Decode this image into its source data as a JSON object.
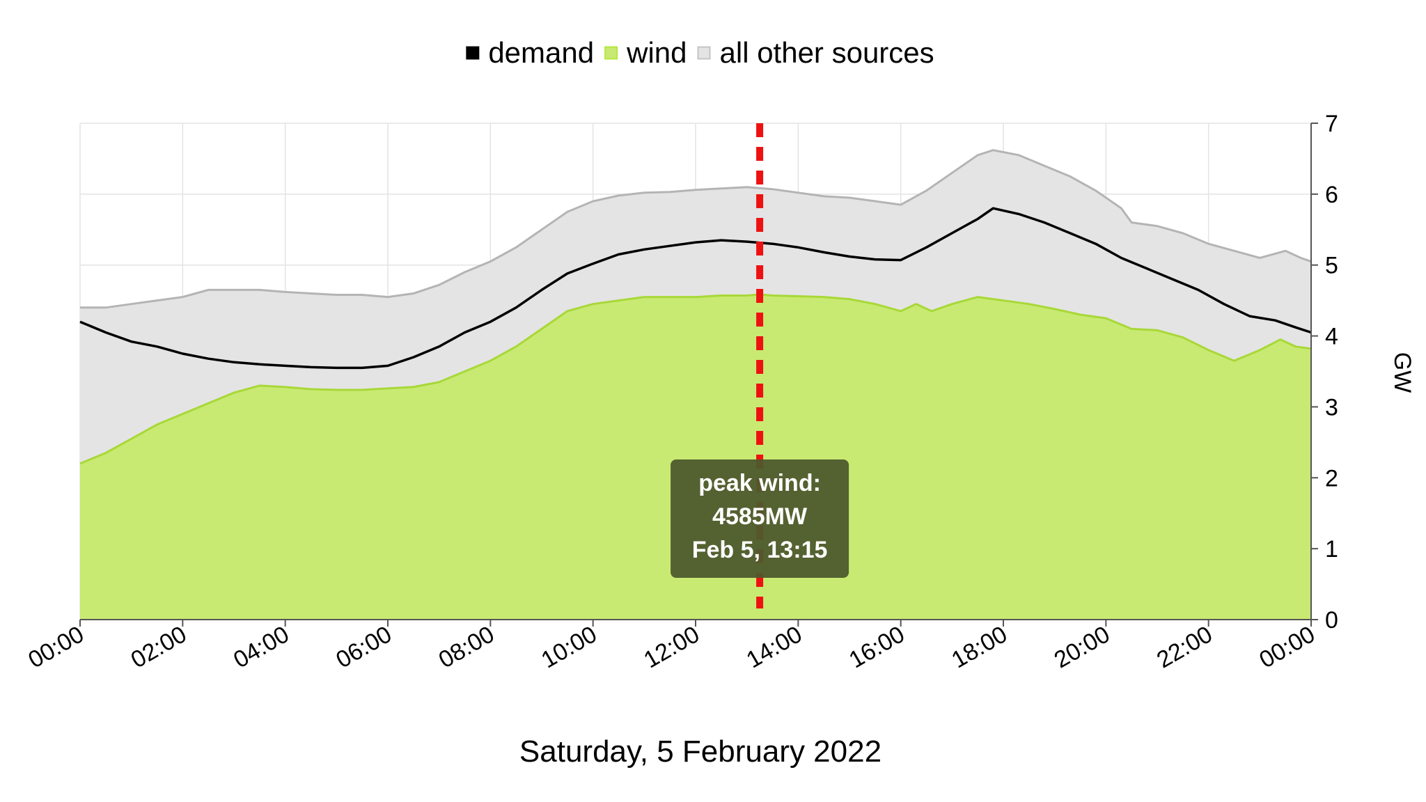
{
  "legend": {
    "items": [
      {
        "label": "demand",
        "color": "#000000"
      },
      {
        "label": "wind",
        "color": "#b5e83c"
      },
      {
        "label": "all other sources",
        "color": "#c4c4c4"
      }
    ]
  },
  "caption": "Saturday, 5 February 2022",
  "y_axis_label": "GW",
  "annotation": {
    "line1": "peak wind:",
    "line2": "4585MW",
    "line3": "Feb 5, 13:15",
    "marker_hour": 13.25
  },
  "colors": {
    "wind_fill": "#c8ea72",
    "wind_line": "#a8d838",
    "other_fill": "#e4e4e4",
    "other_line": "#b4b4b4",
    "demand_line": "#000000",
    "marker": "#ee1111",
    "callout_bg": "#4e5a2d",
    "grid": "#e3e3e3"
  },
  "chart_data": {
    "type": "area",
    "x_unit": "hour of day",
    "x_ticks": [
      "00:00",
      "02:00",
      "04:00",
      "06:00",
      "08:00",
      "10:00",
      "12:00",
      "14:00",
      "16:00",
      "18:00",
      "20:00",
      "22:00",
      "00:00"
    ],
    "y_ticks": [
      "0",
      "1",
      "2",
      "3",
      "4",
      "5",
      "6",
      "7"
    ],
    "xlim": [
      0,
      24
    ],
    "ylim": [
      0,
      7
    ],
    "grid": true,
    "legend_position": "top-center",
    "series": [
      {
        "name": "wind",
        "kind": "area",
        "points": [
          [
            0,
            2.2
          ],
          [
            0.5,
            2.35
          ],
          [
            1,
            2.55
          ],
          [
            1.5,
            2.75
          ],
          [
            2,
            2.9
          ],
          [
            2.5,
            3.05
          ],
          [
            3,
            3.2
          ],
          [
            3.5,
            3.3
          ],
          [
            4,
            3.28
          ],
          [
            4.5,
            3.25
          ],
          [
            5,
            3.24
          ],
          [
            5.5,
            3.24
          ],
          [
            6,
            3.26
          ],
          [
            6.5,
            3.28
          ],
          [
            7,
            3.35
          ],
          [
            7.5,
            3.5
          ],
          [
            8,
            3.65
          ],
          [
            8.5,
            3.85
          ],
          [
            9,
            4.1
          ],
          [
            9.5,
            4.35
          ],
          [
            10,
            4.45
          ],
          [
            10.5,
            4.5
          ],
          [
            11,
            4.55
          ],
          [
            11.5,
            4.55
          ],
          [
            12,
            4.55
          ],
          [
            12.5,
            4.57
          ],
          [
            13,
            4.57
          ],
          [
            13.25,
            4.585
          ],
          [
            13.5,
            4.57
          ],
          [
            14,
            4.56
          ],
          [
            14.5,
            4.55
          ],
          [
            15,
            4.52
          ],
          [
            15.5,
            4.45
          ],
          [
            16,
            4.35
          ],
          [
            16.3,
            4.45
          ],
          [
            16.6,
            4.35
          ],
          [
            17,
            4.45
          ],
          [
            17.5,
            4.55
          ],
          [
            18,
            4.5
          ],
          [
            18.5,
            4.45
          ],
          [
            19,
            4.38
          ],
          [
            19.5,
            4.3
          ],
          [
            20,
            4.25
          ],
          [
            20.5,
            4.1
          ],
          [
            21,
            4.08
          ],
          [
            21.5,
            3.98
          ],
          [
            22,
            3.8
          ],
          [
            22.5,
            3.65
          ],
          [
            23,
            3.8
          ],
          [
            23.4,
            3.95
          ],
          [
            23.7,
            3.85
          ],
          [
            24,
            3.82
          ]
        ]
      },
      {
        "name": "all other sources",
        "kind": "stacked-total",
        "points": [
          [
            0,
            4.4
          ],
          [
            0.5,
            4.4
          ],
          [
            1,
            4.45
          ],
          [
            1.5,
            4.5
          ],
          [
            2,
            4.55
          ],
          [
            2.5,
            4.65
          ],
          [
            3,
            4.65
          ],
          [
            3.5,
            4.65
          ],
          [
            4,
            4.62
          ],
          [
            4.5,
            4.6
          ],
          [
            5,
            4.58
          ],
          [
            5.5,
            4.58
          ],
          [
            6,
            4.55
          ],
          [
            6.5,
            4.6
          ],
          [
            7,
            4.72
          ],
          [
            7.5,
            4.9
          ],
          [
            8,
            5.05
          ],
          [
            8.5,
            5.25
          ],
          [
            9,
            5.5
          ],
          [
            9.5,
            5.75
          ],
          [
            10,
            5.9
          ],
          [
            10.5,
            5.98
          ],
          [
            11,
            6.02
          ],
          [
            11.5,
            6.03
          ],
          [
            12,
            6.06
          ],
          [
            12.5,
            6.08
          ],
          [
            13,
            6.1
          ],
          [
            13.5,
            6.07
          ],
          [
            14,
            6.02
          ],
          [
            14.5,
            5.97
          ],
          [
            15,
            5.95
          ],
          [
            15.5,
            5.9
          ],
          [
            16,
            5.85
          ],
          [
            16.5,
            6.05
          ],
          [
            17,
            6.3
          ],
          [
            17.5,
            6.55
          ],
          [
            17.8,
            6.62
          ],
          [
            18.3,
            6.55
          ],
          [
            18.8,
            6.4
          ],
          [
            19.3,
            6.25
          ],
          [
            19.8,
            6.05
          ],
          [
            20.3,
            5.8
          ],
          [
            20.5,
            5.6
          ],
          [
            21,
            5.55
          ],
          [
            21.5,
            5.45
          ],
          [
            22,
            5.3
          ],
          [
            22.5,
            5.2
          ],
          [
            23,
            5.1
          ],
          [
            23.5,
            5.2
          ],
          [
            23.8,
            5.1
          ],
          [
            24,
            5.05
          ]
        ]
      },
      {
        "name": "demand",
        "kind": "line",
        "points": [
          [
            0,
            4.2
          ],
          [
            0.5,
            4.05
          ],
          [
            1,
            3.92
          ],
          [
            1.5,
            3.85
          ],
          [
            2,
            3.75
          ],
          [
            2.5,
            3.68
          ],
          [
            3,
            3.63
          ],
          [
            3.5,
            3.6
          ],
          [
            4,
            3.58
          ],
          [
            4.5,
            3.56
          ],
          [
            5,
            3.55
          ],
          [
            5.5,
            3.55
          ],
          [
            6,
            3.58
          ],
          [
            6.5,
            3.7
          ],
          [
            7,
            3.85
          ],
          [
            7.5,
            4.05
          ],
          [
            8,
            4.2
          ],
          [
            8.5,
            4.4
          ],
          [
            9,
            4.65
          ],
          [
            9.5,
            4.88
          ],
          [
            10,
            5.02
          ],
          [
            10.5,
            5.15
          ],
          [
            11,
            5.22
          ],
          [
            11.5,
            5.27
          ],
          [
            12,
            5.32
          ],
          [
            12.5,
            5.35
          ],
          [
            13,
            5.33
          ],
          [
            13.5,
            5.3
          ],
          [
            14,
            5.25
          ],
          [
            14.5,
            5.18
          ],
          [
            15,
            5.12
          ],
          [
            15.5,
            5.08
          ],
          [
            16,
            5.07
          ],
          [
            16.5,
            5.25
          ],
          [
            17,
            5.45
          ],
          [
            17.5,
            5.65
          ],
          [
            17.8,
            5.8
          ],
          [
            18.3,
            5.72
          ],
          [
            18.8,
            5.6
          ],
          [
            19.3,
            5.45
          ],
          [
            19.8,
            5.3
          ],
          [
            20.3,
            5.1
          ],
          [
            20.8,
            4.95
          ],
          [
            21.3,
            4.8
          ],
          [
            21.8,
            4.65
          ],
          [
            22.3,
            4.45
          ],
          [
            22.8,
            4.28
          ],
          [
            23.3,
            4.22
          ],
          [
            23.7,
            4.12
          ],
          [
            24,
            4.05
          ]
        ]
      }
    ]
  }
}
